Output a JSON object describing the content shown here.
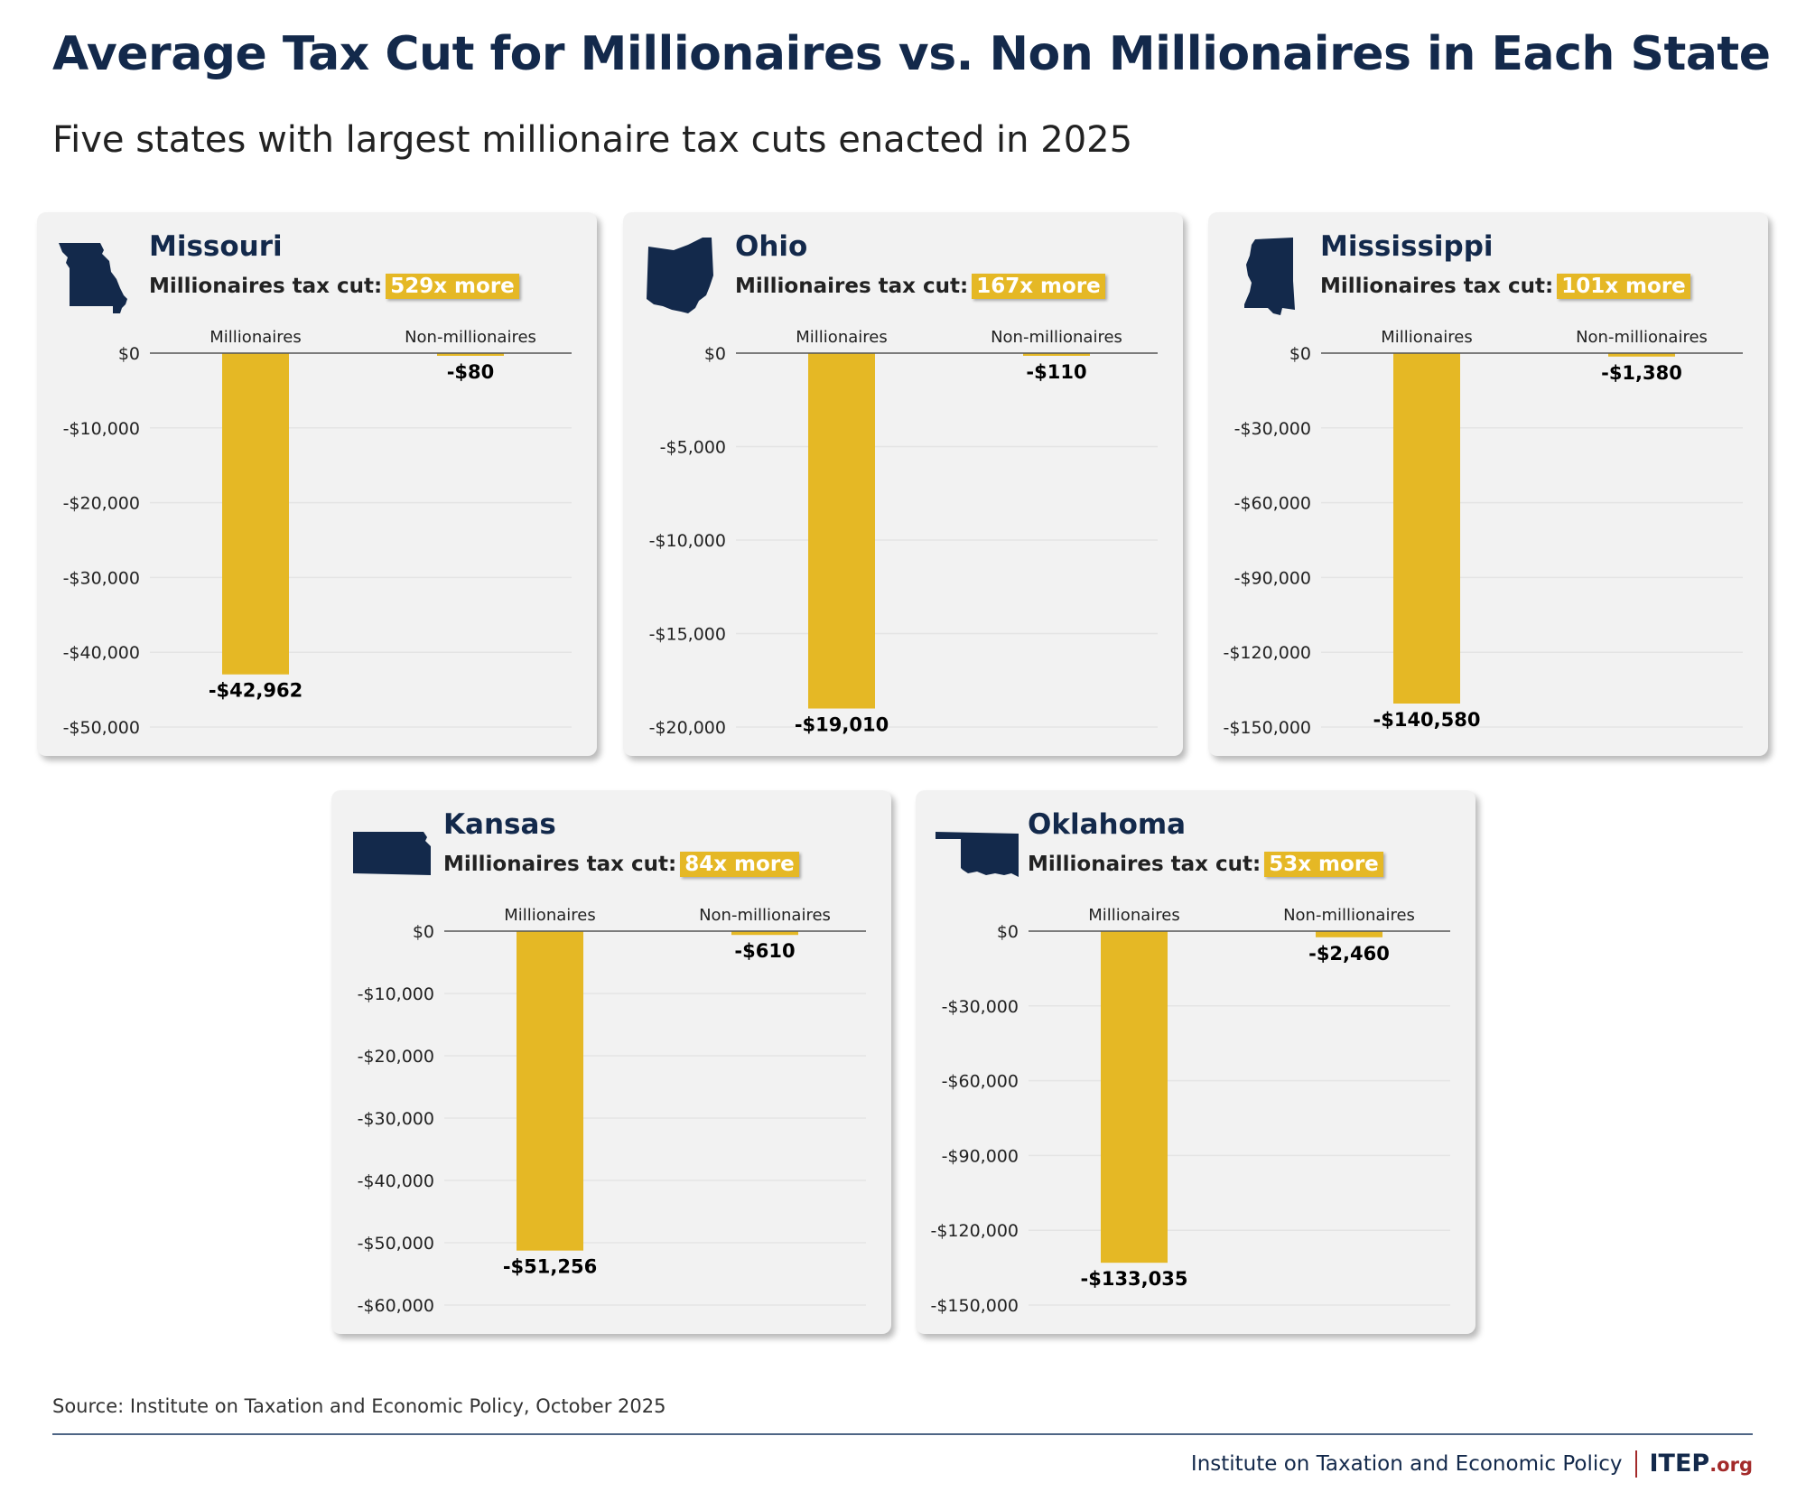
{
  "title": "Average Tax Cut for Millionaires vs. Non Millionaires in Each State",
  "subtitle": "Five states with largest millionaire tax cuts enacted in 2025",
  "colors": {
    "bar": "#e5b825",
    "navy": "#13294b",
    "panel_bg": "#f2f2f2",
    "accent_red": "#a32a2a"
  },
  "footer": {
    "source": "Source: Institute on Taxation and Economic Policy, October 2025",
    "org_name": "Institute on Taxation and Economic Policy",
    "logo_main": "ITEP",
    "logo_suffix": ".org"
  },
  "chart_data": [
    {
      "type": "bar",
      "state": "Missouri",
      "icon": "missouri-state-icon",
      "cut_label": "Millionaires tax cut:",
      "ratio_label": "529x more",
      "categories": [
        "Millionaires",
        "Non-millionaires"
      ],
      "values": [
        -42962,
        -80
      ],
      "value_labels": [
        "-$42,962",
        "-$80"
      ],
      "ylim": [
        -50000,
        0
      ],
      "yticks": [
        0,
        -10000,
        -20000,
        -30000,
        -40000,
        -50000
      ],
      "ytick_labels": [
        "$0",
        "-$10,000",
        "-$20,000",
        "-$30,000",
        "-$40,000",
        "-$50,000"
      ],
      "grid": true
    },
    {
      "type": "bar",
      "state": "Ohio",
      "icon": "ohio-state-icon",
      "cut_label": "Millionaires tax cut:",
      "ratio_label": "167x more",
      "categories": [
        "Millionaires",
        "Non-millionaires"
      ],
      "values": [
        -19010,
        -110
      ],
      "value_labels": [
        "-$19,010",
        "-$110"
      ],
      "ylim": [
        -20000,
        0
      ],
      "yticks": [
        0,
        -5000,
        -10000,
        -15000,
        -20000
      ],
      "ytick_labels": [
        "$0",
        "-$5,000",
        "-$10,000",
        "-$15,000",
        "-$20,000"
      ],
      "grid": true
    },
    {
      "type": "bar",
      "state": "Mississippi",
      "icon": "mississippi-state-icon",
      "cut_label": "Millionaires tax cut:",
      "ratio_label": "101x more",
      "categories": [
        "Millionaires",
        "Non-millionaires"
      ],
      "values": [
        -140580,
        -1380
      ],
      "value_labels": [
        "-$140,580",
        "-$1,380"
      ],
      "ylim": [
        -150000,
        0
      ],
      "yticks": [
        0,
        -30000,
        -60000,
        -90000,
        -120000,
        -150000
      ],
      "ytick_labels": [
        "$0",
        "-$30,000",
        "-$60,000",
        "-$90,000",
        "-$120,000",
        "-$150,000"
      ],
      "grid": true
    },
    {
      "type": "bar",
      "state": "Kansas",
      "icon": "kansas-state-icon",
      "cut_label": "Millionaires tax cut:",
      "ratio_label": "84x more",
      "categories": [
        "Millionaires",
        "Non-millionaires"
      ],
      "values": [
        -51256,
        -610
      ],
      "value_labels": [
        "-$51,256",
        "-$610"
      ],
      "ylim": [
        -60000,
        0
      ],
      "yticks": [
        0,
        -10000,
        -20000,
        -30000,
        -40000,
        -50000,
        -60000
      ],
      "ytick_labels": [
        "$0",
        "-$10,000",
        "-$20,000",
        "-$30,000",
        "-$40,000",
        "-$50,000",
        "-$60,000"
      ],
      "grid": true
    },
    {
      "type": "bar",
      "state": "Oklahoma",
      "icon": "oklahoma-state-icon",
      "cut_label": "Millionaires tax cut:",
      "ratio_label": "53x more",
      "categories": [
        "Millionaires",
        "Non-millionaires"
      ],
      "values": [
        -133035,
        -2460
      ],
      "value_labels": [
        "-$133,035",
        "-$2,460"
      ],
      "ylim": [
        -150000,
        0
      ],
      "yticks": [
        0,
        -30000,
        -60000,
        -90000,
        -120000,
        -150000
      ],
      "ytick_labels": [
        "$0",
        "-$30,000",
        "-$60,000",
        "-$90,000",
        "-$120,000",
        "-$150,000"
      ],
      "grid": true
    }
  ]
}
